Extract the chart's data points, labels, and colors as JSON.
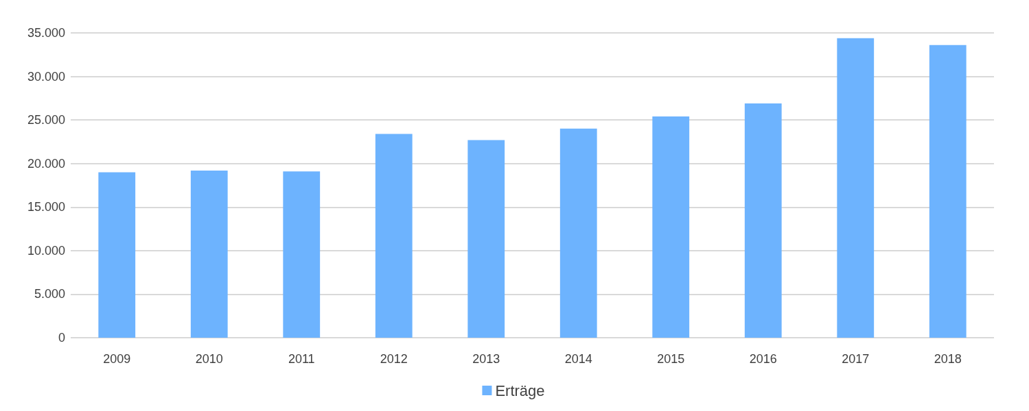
{
  "chart_data": {
    "type": "bar",
    "categories": [
      "2009",
      "2010",
      "2011",
      "2012",
      "2013",
      "2014",
      "2015",
      "2016",
      "2017",
      "2018"
    ],
    "series": [
      {
        "name": "Erträge",
        "color": "#6db3fe",
        "values": [
          19000,
          19200,
          19100,
          23400,
          22700,
          24000,
          25400,
          26900,
          34400,
          33600
        ]
      }
    ],
    "ylim": [
      0,
      35000
    ],
    "yticks": [
      0,
      {
        "value": 5000,
        "label": "5.000"
      },
      {
        "value": 10000,
        "label": "10.000"
      },
      {
        "value": 15000,
        "label": "15.000"
      },
      {
        "value": 20000,
        "label": "20.000"
      },
      {
        "value": 25000,
        "label": "25.000"
      },
      {
        "value": 30000,
        "label": "30.000"
      },
      {
        "value": 35000,
        "label": "35.000"
      }
    ],
    "grid": true,
    "legend": "bottom"
  }
}
